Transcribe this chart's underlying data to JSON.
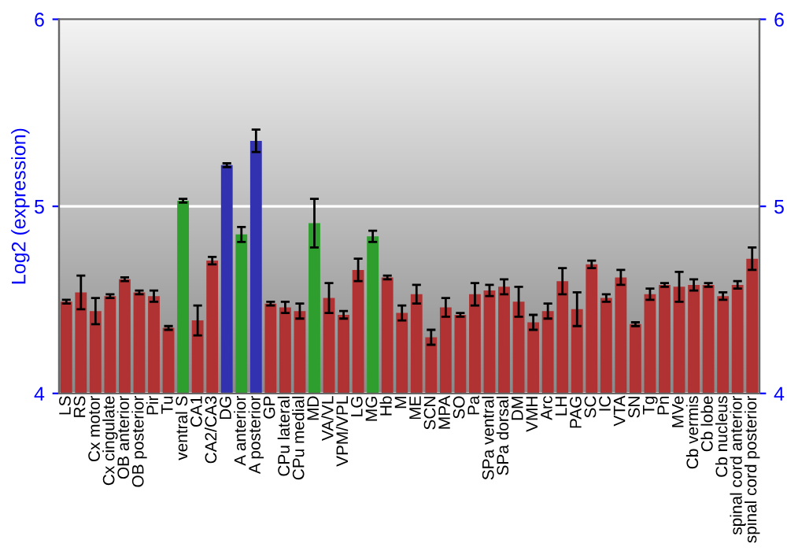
{
  "chart_data": {
    "type": "bar",
    "ylabel": "Log2 (expression)",
    "categories": [
      "LS",
      "RS",
      "Cx motor",
      "Cx cingulate",
      "OB anterior",
      "OB posterior",
      "Pir",
      "Tu",
      "ventral S",
      "CA1",
      "CA2/CA3",
      "DG",
      "A anterior",
      "A posterior",
      "GP",
      "CPu lateral",
      "CPu medial",
      "MD",
      "VA/VL",
      "VPM/VPL",
      "LG",
      "MG",
      "Hb",
      "M",
      "ME",
      "SCN",
      "MPA",
      "SO",
      "Pa",
      "SPa ventral",
      "SPa dorsal",
      "DM",
      "VMH",
      "Arc",
      "LH",
      "PAG",
      "SC",
      "IC",
      "VTA",
      "SN",
      "Tg",
      "Pn",
      "MVe",
      "Cb vermis",
      "Cb lobe",
      "Cb nucleus",
      "spinal cord anterior",
      "spinal cord posterior"
    ],
    "values": [
      4.49,
      4.54,
      4.44,
      4.52,
      4.61,
      4.54,
      4.52,
      4.35,
      5.03,
      4.39,
      4.71,
      5.22,
      4.85,
      5.35,
      4.48,
      4.46,
      4.44,
      4.91,
      4.51,
      4.42,
      4.66,
      4.84,
      4.62,
      4.43,
      4.53,
      4.3,
      4.46,
      4.42,
      4.53,
      4.55,
      4.57,
      4.49,
      4.38,
      4.44,
      4.6,
      4.45,
      4.69,
      4.51,
      4.62,
      4.37,
      4.53,
      4.58,
      4.57,
      4.58,
      4.58,
      4.52,
      4.58,
      4.72
    ],
    "errors": [
      0.01,
      0.09,
      0.07,
      0.01,
      0.01,
      0.01,
      0.03,
      0.01,
      0.01,
      0.08,
      0.02,
      0.01,
      0.04,
      0.06,
      0.01,
      0.03,
      0.04,
      0.13,
      0.08,
      0.02,
      0.06,
      0.03,
      0.01,
      0.04,
      0.05,
      0.04,
      0.05,
      0.01,
      0.06,
      0.03,
      0.04,
      0.08,
      0.04,
      0.04,
      0.07,
      0.09,
      0.02,
      0.02,
      0.04,
      0.01,
      0.03,
      0.01,
      0.08,
      0.03,
      0.01,
      0.02,
      0.02,
      0.06
    ],
    "colors": [
      "#b03232",
      "#b03232",
      "#b03232",
      "#b03232",
      "#b03232",
      "#b03232",
      "#b03232",
      "#b03232",
      "#2e9e2e",
      "#b03232",
      "#b03232",
      "#3232b0",
      "#2e9e2e",
      "#3232b0",
      "#b03232",
      "#b03232",
      "#b03232",
      "#2e9e2e",
      "#b03232",
      "#b03232",
      "#b03232",
      "#2e9e2e",
      "#b03232",
      "#b03232",
      "#b03232",
      "#b03232",
      "#b03232",
      "#b03232",
      "#b03232",
      "#b03232",
      "#b03232",
      "#b03232",
      "#b03232",
      "#b03232",
      "#b03232",
      "#b03232",
      "#b03232",
      "#b03232",
      "#b03232",
      "#b03232",
      "#b03232",
      "#b03232",
      "#b03232",
      "#b03232",
      "#b03232",
      "#b03232",
      "#b03232",
      "#b03232"
    ],
    "ylim": [
      4,
      6
    ],
    "yticks": [
      4,
      5,
      6
    ],
    "y2lim": [
      4,
      6
    ],
    "y2ticks": [
      4,
      5,
      6
    ],
    "grid": "y"
  }
}
